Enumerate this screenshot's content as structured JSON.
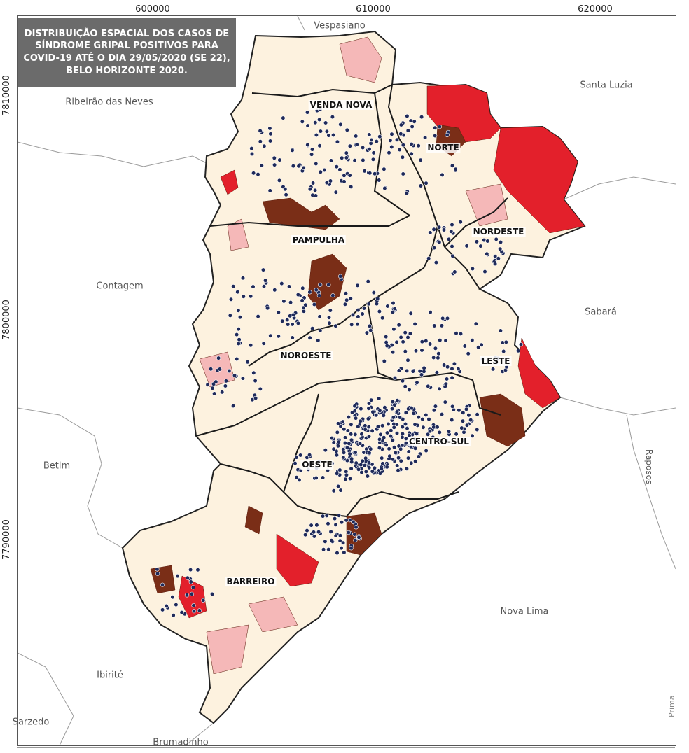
{
  "map": {
    "title": "DISTRIBUIÇÃO ESPACIAL DOS CASOS DE\nSÍNDROME GRIPAL POSITIVOS PARA\nCOVID-19 ATÉ O DIA 29/05/2020 (SE 22),\nBELO HORIZONTE 2020.",
    "x_ticks": [
      "600000",
      "610000",
      "620000"
    ],
    "y_ticks": [
      "7810000",
      "7800000",
      "7790000"
    ],
    "regions": [
      "VENDA NOVA",
      "NORTE",
      "NORDESTE",
      "PAMPULHA",
      "NOROESTE",
      "LESTE",
      "CENTRO-SUL",
      "OESTE",
      "BARREIRO"
    ],
    "municipalities": [
      "Vespasiano",
      "Santa Luzia",
      "Ribeirão das Neves",
      "Contagem",
      "Sabará",
      "Betim",
      "Raposos",
      "Nova Lima",
      "Ibirité",
      "Sarzedo",
      "Brumadinho"
    ],
    "credit": "Prima",
    "colors": {
      "case_point": "#1f2a5a",
      "cream": "#fdf2df",
      "light_pink": "#f5b8b8",
      "red": "#e3202b",
      "brown": "#7a2e17",
      "boundary": "#222222"
    }
  }
}
